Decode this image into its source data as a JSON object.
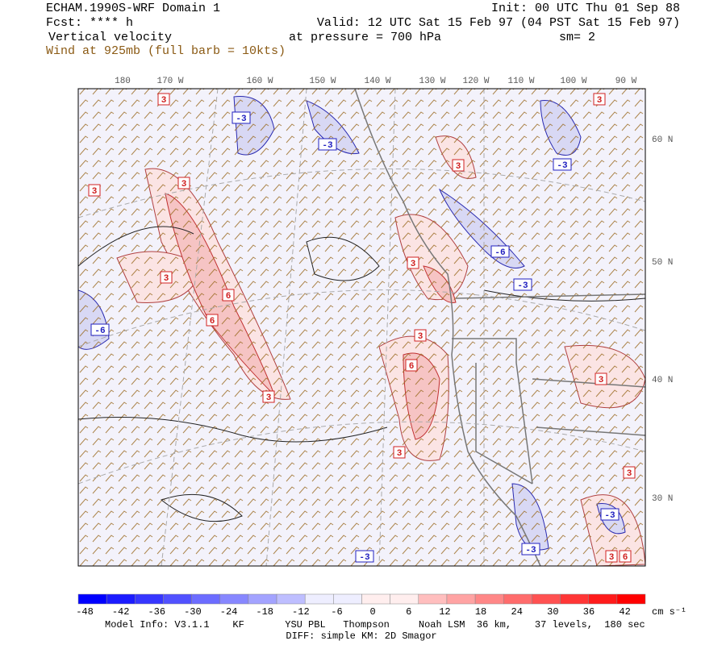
{
  "header": {
    "title": "ECHAM.1990S-WRF Domain 1",
    "init": "Init: 00 UTC Thu 01 Sep 88",
    "forecast": "Fcst: **** h",
    "valid": "Valid: 12 UTC Sat 15 Feb 97 (04 PST Sat 15 Feb 97)",
    "field": "Vertical velocity",
    "pressure": "at pressure =  700 hPa",
    "smoothing": "sm= 2",
    "wind": "Wind at 925mb (full barb = 10kts)"
  },
  "map": {
    "longitude_labels": [
      "180",
      "170 W",
      "160 W",
      "150 W",
      "140 W",
      "130 W",
      "120 W",
      "110 W",
      "100 W",
      "90 W"
    ],
    "latitude_labels": [
      "60 N",
      "50 N",
      "40 N",
      "30 N"
    ],
    "contour_labels": [
      "3",
      "-3",
      "-3",
      "3",
      "3",
      "3",
      "-3",
      "3",
      "3",
      "6",
      "6",
      "-6",
      "3",
      "-6",
      "-3",
      "3",
      "6",
      "3",
      "3",
      "3",
      "3",
      "-3",
      "-3",
      "-3",
      "3",
      "6"
    ]
  },
  "colorbar": {
    "ticks": [
      -48,
      -42,
      -36,
      -30,
      -24,
      -18,
      -12,
      -6,
      0,
      6,
      12,
      18,
      24,
      30,
      36,
      42
    ],
    "unit": "cm s⁻¹"
  },
  "footer": {
    "model_info": "Model Info: V3.1.1    KF       YSU PBL   Thompson     Noah LSM  36 km,    37 levels,  180 sec",
    "diff": "DIFF: simple KM: 2D Smagor"
  }
}
